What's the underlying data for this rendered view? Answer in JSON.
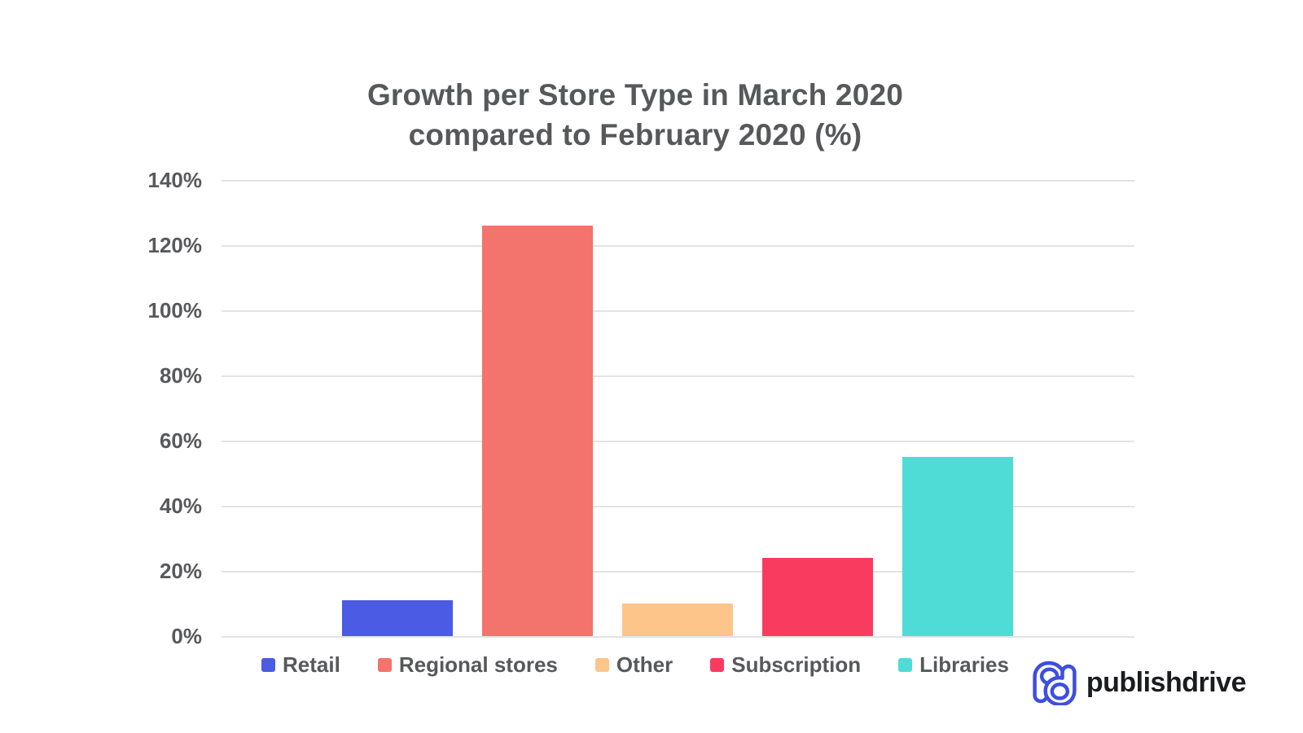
{
  "chart_data": {
    "type": "bar",
    "title_line1": "Growth per Store Type in March 2020",
    "title_line2": "compared to February 2020 (%)",
    "categories": [
      "Retail",
      "Regional stores",
      "Other",
      "Subscription",
      "Libraries"
    ],
    "series": [
      {
        "name": "Retail",
        "value": 11,
        "color": "#4b5be3"
      },
      {
        "name": "Regional stores",
        "value": 126,
        "color": "#f3736d"
      },
      {
        "name": "Other",
        "value": 10,
        "color": "#fdc58a"
      },
      {
        "name": "Subscription",
        "value": 24,
        "color": "#fa3b60"
      },
      {
        "name": "Libraries",
        "value": 55,
        "color": "#4fdbd6"
      }
    ],
    "values": [
      11,
      126,
      10,
      24,
      55
    ],
    "ylabel": "",
    "xlabel": "",
    "ylim": [
      0,
      140
    ],
    "ytick_step": 20,
    "ytick_labels": [
      "0%",
      "20%",
      "40%",
      "60%",
      "80%",
      "100%",
      "120%",
      "140%"
    ],
    "grid": true,
    "legend_position": "bottom"
  },
  "branding": {
    "logo_text": "publishdrive",
    "logo_mark": "publishdrive-monogram",
    "logo_mark_color": "#3d4ee0",
    "logo_text_color": "#1b1c1e"
  },
  "theme": {
    "background": "#ffffff",
    "label_color": "#58595b",
    "title_color": "#57585a",
    "grid_color": "#e3e3e3"
  }
}
